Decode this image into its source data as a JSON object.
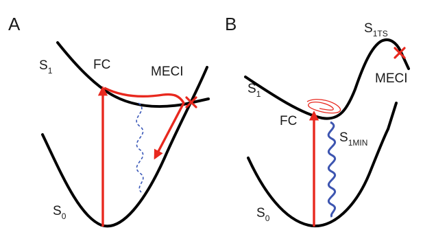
{
  "panel_a": {
    "letter": "A",
    "s1_main": "S",
    "s1_sub": "1",
    "s0_main": "S",
    "s0_sub": "0",
    "fc": "FC",
    "meci": "MECI"
  },
  "panel_b": {
    "letter": "B",
    "s1ts_main": "S",
    "s1ts_sub": "1TS",
    "s1_main": "S",
    "s1_sub": "1",
    "s0_main": "S",
    "s0_sub": "0",
    "fc": "FC",
    "meci": "MECI",
    "s1min_main": "S",
    "s1min_sub": "1MIN"
  },
  "colors": {
    "curve": "#000000",
    "arrow": "#e8281e",
    "wave_dashed": "#3a58b8",
    "wave_solid": "#3d55b0",
    "marker": "#e8281e"
  }
}
